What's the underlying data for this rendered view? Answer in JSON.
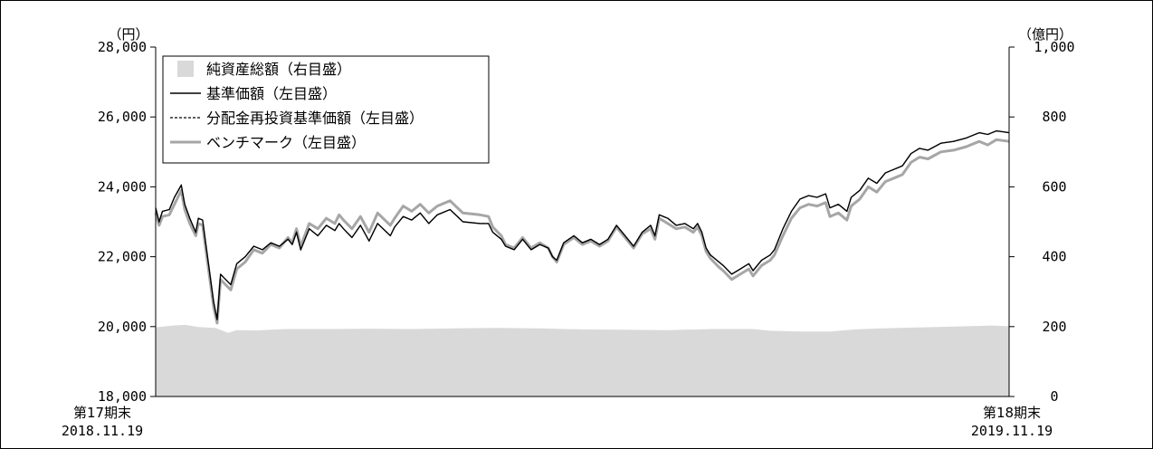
{
  "chart_data": {
    "type": "line",
    "left_axis": {
      "unit": "（円）",
      "ylim": [
        18000,
        28000
      ],
      "ticks": [
        28000,
        26000,
        24000,
        22000,
        20000,
        18000
      ],
      "tick_labels": [
        "28,000",
        "26,000",
        "24,000",
        "22,000",
        "20,000",
        "18,000"
      ]
    },
    "right_axis": {
      "unit": "（億円）",
      "ylim": [
        0,
        1000
      ],
      "ticks": [
        1000,
        800,
        600,
        400,
        200,
        0
      ],
      "tick_labels": [
        "1,000",
        "800",
        "600",
        "400",
        "200",
        "0"
      ]
    },
    "x_axis": {
      "start": {
        "period": "第17期末",
        "date": "2018.11.19"
      },
      "end": {
        "period": "第18期末",
        "date": "2019.11.19"
      }
    },
    "legend": {
      "placement": "top-left",
      "items": [
        {
          "label": "純資産総額（右目盛）",
          "style": "area",
          "color": "#d9d9d9"
        },
        {
          "label": "基準価額（左目盛）",
          "style": "solid",
          "color": "#000000"
        },
        {
          "label": "分配金再投資基準価額（左目盛）",
          "style": "dashed",
          "color": "#000000"
        },
        {
          "label": "ベンチマーク（左目盛）",
          "style": "solid-thick",
          "color": "#a6a6a6"
        }
      ]
    },
    "series": [
      {
        "name": "純資産総額（右目盛）",
        "axis": "right",
        "type": "area",
        "color": "#d9d9d9",
        "points": [
          [
            0,
            198
          ],
          [
            0.02,
            203
          ],
          [
            0.035,
            205
          ],
          [
            0.05,
            199
          ],
          [
            0.07,
            196
          ],
          [
            0.085,
            182
          ],
          [
            0.095,
            190
          ],
          [
            0.12,
            189
          ],
          [
            0.15,
            193
          ],
          [
            0.2,
            193
          ],
          [
            0.25,
            194
          ],
          [
            0.3,
            193
          ],
          [
            0.35,
            195
          ],
          [
            0.4,
            196
          ],
          [
            0.45,
            195
          ],
          [
            0.5,
            192
          ],
          [
            0.55,
            191
          ],
          [
            0.6,
            190
          ],
          [
            0.65,
            193
          ],
          [
            0.7,
            193
          ],
          [
            0.72,
            188
          ],
          [
            0.76,
            186
          ],
          [
            0.79,
            186
          ],
          [
            0.82,
            192
          ],
          [
            0.85,
            195
          ],
          [
            0.9,
            198
          ],
          [
            0.95,
            201
          ],
          [
            0.98,
            203
          ],
          [
            1.0,
            201
          ]
        ]
      },
      {
        "name": "基準価額（左目盛）",
        "axis": "left",
        "type": "line",
        "color": "#000000",
        "points": [
          [
            0,
            23400
          ],
          [
            0.004,
            23000
          ],
          [
            0.008,
            23300
          ],
          [
            0.016,
            23350
          ],
          [
            0.022,
            23700
          ],
          [
            0.03,
            24050
          ],
          [
            0.034,
            23500
          ],
          [
            0.04,
            23100
          ],
          [
            0.047,
            22700
          ],
          [
            0.05,
            23100
          ],
          [
            0.055,
            23050
          ],
          [
            0.058,
            22500
          ],
          [
            0.063,
            21600
          ],
          [
            0.068,
            20700
          ],
          [
            0.072,
            20200
          ],
          [
            0.076,
            21500
          ],
          [
            0.08,
            21400
          ],
          [
            0.088,
            21200
          ],
          [
            0.095,
            21800
          ],
          [
            0.105,
            22000
          ],
          [
            0.115,
            22300
          ],
          [
            0.125,
            22200
          ],
          [
            0.135,
            22400
          ],
          [
            0.145,
            22300
          ],
          [
            0.155,
            22500
          ],
          [
            0.16,
            22350
          ],
          [
            0.165,
            22700
          ],
          [
            0.17,
            22200
          ],
          [
            0.18,
            22800
          ],
          [
            0.19,
            22600
          ],
          [
            0.2,
            22900
          ],
          [
            0.21,
            22750
          ],
          [
            0.215,
            22950
          ],
          [
            0.22,
            22800
          ],
          [
            0.23,
            22550
          ],
          [
            0.24,
            22900
          ],
          [
            0.25,
            22450
          ],
          [
            0.26,
            22950
          ],
          [
            0.275,
            22600
          ],
          [
            0.28,
            22850
          ],
          [
            0.29,
            23150
          ],
          [
            0.3,
            23050
          ],
          [
            0.31,
            23250
          ],
          [
            0.32,
            22950
          ],
          [
            0.33,
            23200
          ],
          [
            0.345,
            23350
          ],
          [
            0.36,
            23000
          ],
          [
            0.38,
            22950
          ],
          [
            0.39,
            22950
          ],
          [
            0.395,
            22700
          ],
          [
            0.405,
            22500
          ],
          [
            0.41,
            22300
          ],
          [
            0.42,
            22200
          ],
          [
            0.43,
            22500
          ],
          [
            0.44,
            22200
          ],
          [
            0.45,
            22350
          ],
          [
            0.46,
            22250
          ],
          [
            0.465,
            22000
          ],
          [
            0.47,
            21900
          ],
          [
            0.478,
            22400
          ],
          [
            0.49,
            22600
          ],
          [
            0.5,
            22400
          ],
          [
            0.51,
            22500
          ],
          [
            0.52,
            22350
          ],
          [
            0.53,
            22500
          ],
          [
            0.54,
            22900
          ],
          [
            0.55,
            22600
          ],
          [
            0.56,
            22300
          ],
          [
            0.57,
            22700
          ],
          [
            0.58,
            22900
          ],
          [
            0.585,
            22600
          ],
          [
            0.59,
            23200
          ],
          [
            0.6,
            23100
          ],
          [
            0.61,
            22900
          ],
          [
            0.62,
            22950
          ],
          [
            0.63,
            22800
          ],
          [
            0.635,
            22950
          ],
          [
            0.64,
            22700
          ],
          [
            0.645,
            22250
          ],
          [
            0.65,
            22050
          ],
          [
            0.66,
            21850
          ],
          [
            0.665,
            21750
          ],
          [
            0.675,
            21500
          ],
          [
            0.685,
            21650
          ],
          [
            0.695,
            21800
          ],
          [
            0.7,
            21600
          ],
          [
            0.71,
            21900
          ],
          [
            0.72,
            22050
          ],
          [
            0.725,
            22200
          ],
          [
            0.735,
            22800
          ],
          [
            0.745,
            23300
          ],
          [
            0.755,
            23650
          ],
          [
            0.765,
            23750
          ],
          [
            0.775,
            23700
          ],
          [
            0.785,
            23800
          ],
          [
            0.79,
            23400
          ],
          [
            0.8,
            23500
          ],
          [
            0.81,
            23300
          ],
          [
            0.815,
            23700
          ],
          [
            0.825,
            23900
          ],
          [
            0.835,
            24250
          ],
          [
            0.845,
            24100
          ],
          [
            0.855,
            24400
          ],
          [
            0.865,
            24500
          ],
          [
            0.875,
            24600
          ],
          [
            0.885,
            24950
          ],
          [
            0.895,
            25100
          ],
          [
            0.905,
            25050
          ],
          [
            0.92,
            25250
          ],
          [
            0.935,
            25300
          ],
          [
            0.95,
            25400
          ],
          [
            0.965,
            25550
          ],
          [
            0.975,
            25500
          ],
          [
            0.985,
            25600
          ],
          [
            1.0,
            25550
          ]
        ]
      },
      {
        "name": "分配金再投資基準価額（左目盛）",
        "axis": "left",
        "type": "line",
        "style": "dashed",
        "color": "#000000",
        "overlaps": "基準価額（左目盛）"
      },
      {
        "name": "ベンチマーク（左目盛）",
        "axis": "left",
        "type": "line",
        "color": "#a6a6a6",
        "points": [
          [
            0,
            23250
          ],
          [
            0.004,
            22900
          ],
          [
            0.008,
            23150
          ],
          [
            0.016,
            23200
          ],
          [
            0.022,
            23500
          ],
          [
            0.03,
            23900
          ],
          [
            0.034,
            23350
          ],
          [
            0.04,
            22950
          ],
          [
            0.047,
            22600
          ],
          [
            0.05,
            22950
          ],
          [
            0.055,
            22900
          ],
          [
            0.058,
            22350
          ],
          [
            0.063,
            21450
          ],
          [
            0.068,
            20550
          ],
          [
            0.072,
            20100
          ],
          [
            0.076,
            21350
          ],
          [
            0.08,
            21250
          ],
          [
            0.088,
            21050
          ],
          [
            0.095,
            21650
          ],
          [
            0.105,
            21850
          ],
          [
            0.115,
            22200
          ],
          [
            0.125,
            22100
          ],
          [
            0.135,
            22350
          ],
          [
            0.145,
            22250
          ],
          [
            0.155,
            22550
          ],
          [
            0.16,
            22400
          ],
          [
            0.165,
            22800
          ],
          [
            0.17,
            22300
          ],
          [
            0.18,
            22950
          ],
          [
            0.19,
            22800
          ],
          [
            0.2,
            23100
          ],
          [
            0.21,
            22950
          ],
          [
            0.215,
            23200
          ],
          [
            0.22,
            23050
          ],
          [
            0.23,
            22800
          ],
          [
            0.24,
            23150
          ],
          [
            0.25,
            22700
          ],
          [
            0.26,
            23250
          ],
          [
            0.275,
            22900
          ],
          [
            0.28,
            23100
          ],
          [
            0.29,
            23450
          ],
          [
            0.3,
            23300
          ],
          [
            0.31,
            23500
          ],
          [
            0.32,
            23250
          ],
          [
            0.33,
            23450
          ],
          [
            0.345,
            23600
          ],
          [
            0.36,
            23250
          ],
          [
            0.38,
            23200
          ],
          [
            0.39,
            23150
          ],
          [
            0.395,
            22850
          ],
          [
            0.405,
            22600
          ],
          [
            0.41,
            22350
          ],
          [
            0.42,
            22250
          ],
          [
            0.43,
            22550
          ],
          [
            0.44,
            22250
          ],
          [
            0.45,
            22400
          ],
          [
            0.46,
            22250
          ],
          [
            0.465,
            22000
          ],
          [
            0.47,
            21850
          ],
          [
            0.478,
            22350
          ],
          [
            0.49,
            22550
          ],
          [
            0.5,
            22350
          ],
          [
            0.51,
            22450
          ],
          [
            0.52,
            22300
          ],
          [
            0.53,
            22450
          ],
          [
            0.54,
            22850
          ],
          [
            0.55,
            22550
          ],
          [
            0.56,
            22250
          ],
          [
            0.57,
            22650
          ],
          [
            0.58,
            22800
          ],
          [
            0.585,
            22500
          ],
          [
            0.59,
            23100
          ],
          [
            0.6,
            22950
          ],
          [
            0.61,
            22800
          ],
          [
            0.62,
            22850
          ],
          [
            0.63,
            22700
          ],
          [
            0.635,
            22850
          ],
          [
            0.64,
            22600
          ],
          [
            0.645,
            22150
          ],
          [
            0.65,
            21950
          ],
          [
            0.66,
            21700
          ],
          [
            0.665,
            21600
          ],
          [
            0.675,
            21350
          ],
          [
            0.685,
            21500
          ],
          [
            0.695,
            21650
          ],
          [
            0.7,
            21450
          ],
          [
            0.71,
            21750
          ],
          [
            0.72,
            21900
          ],
          [
            0.725,
            22050
          ],
          [
            0.735,
            22600
          ],
          [
            0.745,
            23100
          ],
          [
            0.755,
            23400
          ],
          [
            0.765,
            23500
          ],
          [
            0.775,
            23450
          ],
          [
            0.785,
            23550
          ],
          [
            0.79,
            23150
          ],
          [
            0.8,
            23250
          ],
          [
            0.81,
            23050
          ],
          [
            0.815,
            23450
          ],
          [
            0.825,
            23650
          ],
          [
            0.835,
            24000
          ],
          [
            0.845,
            23850
          ],
          [
            0.855,
            24150
          ],
          [
            0.865,
            24250
          ],
          [
            0.875,
            24350
          ],
          [
            0.885,
            24700
          ],
          [
            0.895,
            24850
          ],
          [
            0.905,
            24800
          ],
          [
            0.92,
            25000
          ],
          [
            0.935,
            25050
          ],
          [
            0.95,
            25150
          ],
          [
            0.965,
            25300
          ],
          [
            0.975,
            25200
          ],
          [
            0.985,
            25350
          ],
          [
            1.0,
            25300
          ]
        ]
      }
    ]
  }
}
